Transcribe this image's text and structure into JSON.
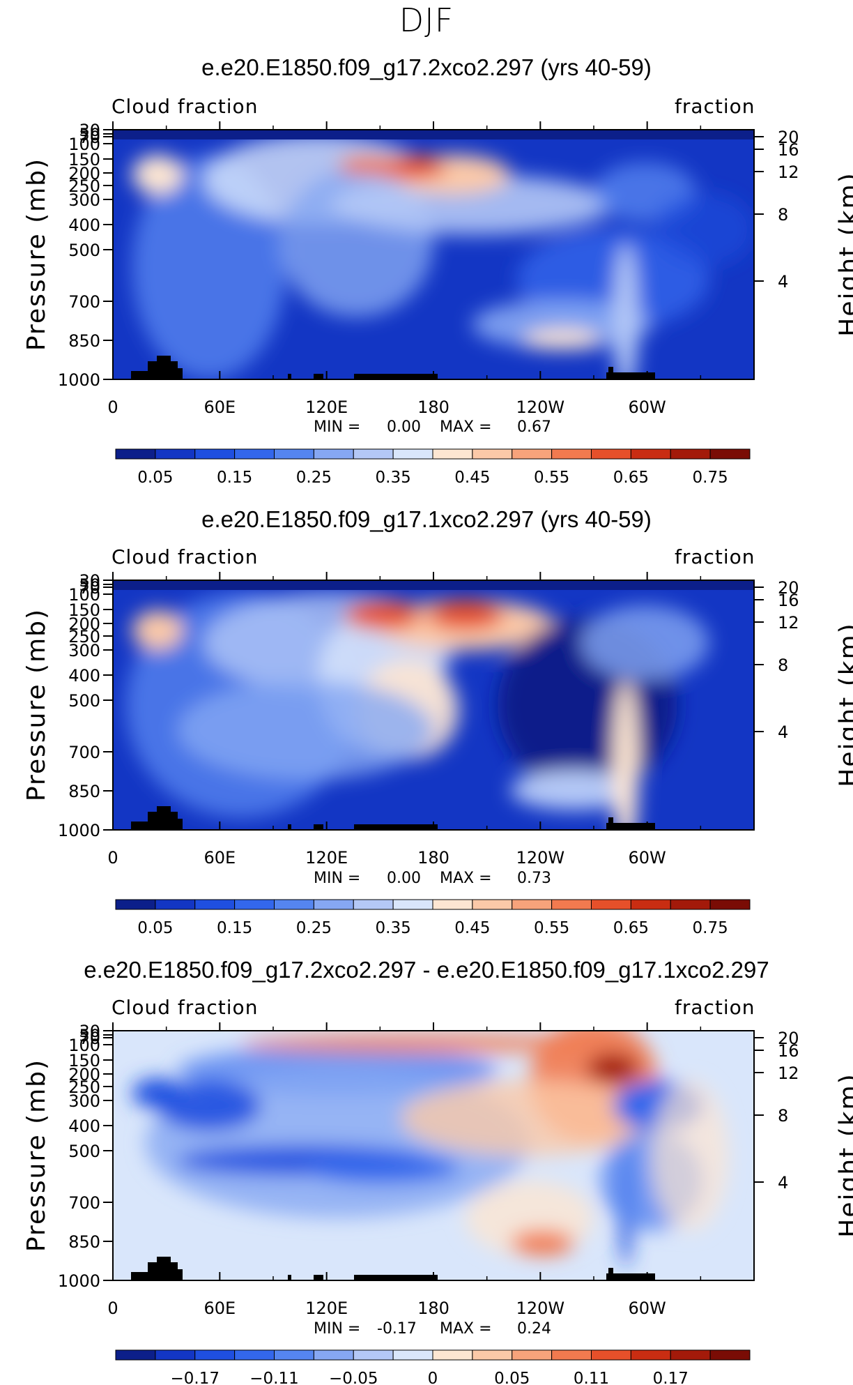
{
  "figure_title": "DJF",
  "chart_data": [
    {
      "type": "heatmap",
      "title": "e.e20.E1850.f09_g17.2xco2.297 (yrs 40-59)",
      "left_label": "Cloud fraction",
      "right_label": "fraction",
      "ylabel": "Pressure (mb)",
      "y2label": "Height (km)",
      "x_ticks": [
        "0",
        "60E",
        "120E",
        "180",
        "120W",
        "60W"
      ],
      "y_ticks": [
        "30",
        "50",
        "70",
        "100",
        "150",
        "200",
        "250",
        "300",
        "400",
        "500",
        "700",
        "850",
        "1000"
      ],
      "y2_ticks": [
        "20",
        "16",
        "12",
        "8",
        "4"
      ],
      "min_label": "MIN =",
      "min_value": "0.00",
      "max_label": "MAX =",
      "max_value": "0.67",
      "colorbar_labels": [
        "0.05",
        "0.15",
        "0.25",
        "0.35",
        "0.45",
        "0.55",
        "0.65",
        "0.75"
      ],
      "colorbar_colors": [
        "#0c1f8a",
        "#1336c4",
        "#1f4fe0",
        "#3367ec",
        "#5585f0",
        "#86a7f3",
        "#b4c8f6",
        "#d9e6fb",
        "#fde6d2",
        "#fbc9a8",
        "#f7a37b",
        "#f27a4f",
        "#e6502a",
        "#c92d12",
        "#a31a0a",
        "#7a0c05"
      ]
    },
    {
      "type": "heatmap",
      "title": "e.e20.E1850.f09_g17.1xco2.297 (yrs 40-59)",
      "left_label": "Cloud fraction",
      "right_label": "fraction",
      "ylabel": "Pressure (mb)",
      "y2label": "Height (km)",
      "x_ticks": [
        "0",
        "60E",
        "120E",
        "180",
        "120W",
        "60W"
      ],
      "y_ticks": [
        "30",
        "50",
        "70",
        "100",
        "150",
        "200",
        "250",
        "300",
        "400",
        "500",
        "700",
        "850",
        "1000"
      ],
      "y2_ticks": [
        "20",
        "16",
        "12",
        "8",
        "4"
      ],
      "min_label": "MIN =",
      "min_value": "0.00",
      "max_label": "MAX =",
      "max_value": "0.73",
      "colorbar_labels": [
        "0.05",
        "0.15",
        "0.25",
        "0.35",
        "0.45",
        "0.55",
        "0.65",
        "0.75"
      ],
      "colorbar_colors": [
        "#0c1f8a",
        "#1336c4",
        "#1f4fe0",
        "#3367ec",
        "#5585f0",
        "#86a7f3",
        "#b4c8f6",
        "#d9e6fb",
        "#fde6d2",
        "#fbc9a8",
        "#f7a37b",
        "#f27a4f",
        "#e6502a",
        "#c92d12",
        "#a31a0a",
        "#7a0c05"
      ]
    },
    {
      "type": "heatmap",
      "title": "e.e20.E1850.f09_g17.2xco2.297 - e.e20.E1850.f09_g17.1xco2.297",
      "left_label": "Cloud fraction",
      "right_label": "fraction",
      "ylabel": "Pressure (mb)",
      "y2label": "Height (km)",
      "x_ticks": [
        "0",
        "60E",
        "120E",
        "180",
        "120W",
        "60W"
      ],
      "y_ticks": [
        "30",
        "50",
        "70",
        "100",
        "150",
        "200",
        "250",
        "300",
        "400",
        "500",
        "700",
        "850",
        "1000"
      ],
      "y2_ticks": [
        "20",
        "16",
        "12",
        "8",
        "4"
      ],
      "min_label": "MIN =",
      "min_value": "-0.17",
      "max_label": "MAX =",
      "max_value": "0.24",
      "colorbar_labels": [
        "−0.17",
        "−0.11",
        "−0.05",
        "0",
        "0.05",
        "0.11",
        "0.17"
      ],
      "colorbar_colors": [
        "#0c1f8a",
        "#1336c4",
        "#1f4fe0",
        "#3367ec",
        "#5585f0",
        "#86a7f3",
        "#b4c8f6",
        "#d9e6fb",
        "#fde6d2",
        "#fbc9a8",
        "#f7a37b",
        "#f27a4f",
        "#e6502a",
        "#c92d12",
        "#a31a0a",
        "#7a0c05"
      ]
    }
  ]
}
